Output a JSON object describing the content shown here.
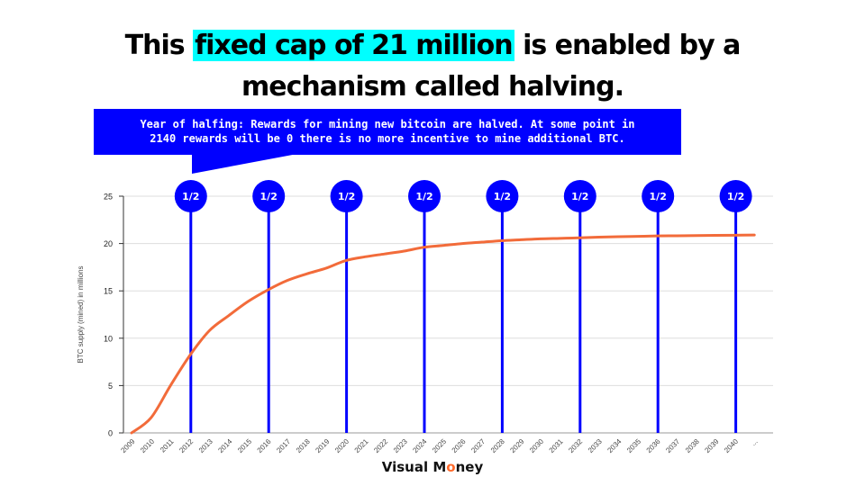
{
  "headline": {
    "before": "This ",
    "highlight": "fixed cap of 21 million",
    "after": " is enabled by a",
    "line2": "mechanism called halving."
  },
  "callout": {
    "line1": "Year of halfing: Rewards for mining new bitcoin are halved. At some point in",
    "line2": "2140 rewards will be 0 there is no more incentive to mine additional BTC."
  },
  "logo": {
    "part1": "Visual M",
    "o": "o",
    "part2": "ney"
  },
  "colors": {
    "accent": "#0000ff",
    "highlight": "#00ffff",
    "line": "#f26b3a",
    "grid": "#dddddd"
  },
  "chart_data": {
    "type": "line",
    "title": "",
    "xlabel": "",
    "ylabel": "BTC supply (mined) in millions",
    "ylim": [
      0,
      25
    ],
    "yticks": [
      0,
      5,
      10,
      15,
      20,
      25
    ],
    "grid": true,
    "categories": [
      "2009",
      "2010",
      "2011",
      "2012",
      "2013",
      "2014",
      "2015",
      "2016",
      "2017",
      "2018",
      "2019",
      "2020",
      "2021",
      "2022",
      "2023",
      "2024",
      "2025",
      "2026",
      "2027",
      "2028",
      "2029",
      "2030",
      "2031",
      "2032",
      "2033",
      "2034",
      "2035",
      "2036",
      "2037",
      "2038",
      "2039",
      "2040",
      "..."
    ],
    "series": [
      {
        "name": "BTC supply",
        "values": [
          0,
          1.6,
          5.0,
          8.2,
          10.8,
          12.4,
          13.9,
          15.1,
          16.1,
          16.8,
          17.4,
          18.2,
          18.6,
          18.9,
          19.2,
          19.6,
          19.8,
          20.0,
          20.15,
          20.3,
          20.4,
          20.5,
          20.55,
          20.6,
          20.67,
          20.72,
          20.76,
          20.8,
          20.82,
          20.84,
          20.86,
          20.88,
          20.9
        ]
      }
    ],
    "halving_markers": {
      "label": "1/2",
      "years": [
        "2012",
        "2016",
        "2020",
        "2024",
        "2028",
        "2032",
        "2036",
        "2040"
      ]
    }
  }
}
